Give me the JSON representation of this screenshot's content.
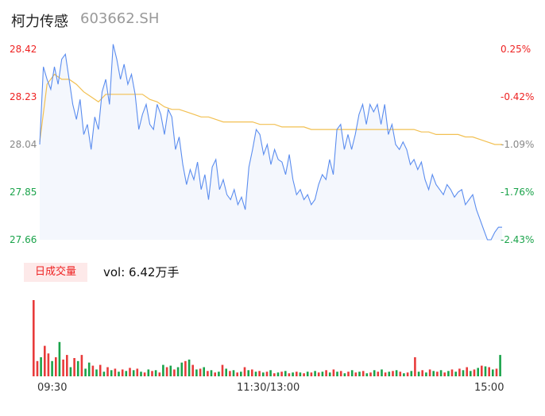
{
  "header": {
    "name": "柯力传感",
    "code": "603662.SH"
  },
  "price_axis": [
    "28.42",
    "28.23",
    "28.04",
    "27.85",
    "27.66"
  ],
  "pct_axis": [
    "0.25%",
    "-0.42%",
    "-1.09%",
    "-1.76%",
    "-2.43%"
  ],
  "volume": {
    "badge": "日成交量",
    "summary": "vol: 6.42万手"
  },
  "time_axis": [
    "09:30",
    "11:30/13:00",
    "15:00"
  ],
  "colors": {
    "up": "#e83b3b",
    "down": "#1aa34a",
    "price": "#5b8def",
    "avg": "#f2c052",
    "neutral": "#888888"
  },
  "chart_data": [
    {
      "type": "line",
      "series": [
        {
          "name": "price",
          "points": [
            [
              0,
              28.04
            ],
            [
              1,
              28.35
            ],
            [
              2,
              28.3
            ],
            [
              3,
              28.26
            ],
            [
              4,
              28.35
            ],
            [
              5,
              28.28
            ],
            [
              6,
              28.38
            ],
            [
              7,
              28.4
            ],
            [
              8,
              28.3
            ],
            [
              9,
              28.2
            ],
            [
              10,
              28.14
            ],
            [
              11,
              28.22
            ],
            [
              12,
              28.08
            ],
            [
              13,
              28.12
            ],
            [
              14,
              28.02
            ],
            [
              15,
              28.15
            ],
            [
              16,
              28.1
            ],
            [
              17,
              28.25
            ],
            [
              18,
              28.3
            ],
            [
              19,
              28.2
            ],
            [
              20,
              28.44
            ],
            [
              21,
              28.38
            ],
            [
              22,
              28.3
            ],
            [
              23,
              28.36
            ],
            [
              24,
              28.28
            ],
            [
              25,
              28.32
            ],
            [
              26,
              28.24
            ],
            [
              27,
              28.1
            ],
            [
              28,
              28.16
            ],
            [
              29,
              28.2
            ],
            [
              30,
              28.12
            ],
            [
              31,
              28.1
            ],
            [
              32,
              28.2
            ],
            [
              33,
              28.16
            ],
            [
              34,
              28.08
            ],
            [
              35,
              28.18
            ],
            [
              36,
              28.15
            ],
            [
              37,
              28.02
            ],
            [
              38,
              28.07
            ],
            [
              39,
              27.96
            ],
            [
              40,
              27.88
            ],
            [
              41,
              27.94
            ],
            [
              42,
              27.9
            ],
            [
              43,
              27.97
            ],
            [
              44,
              27.86
            ],
            [
              45,
              27.92
            ],
            [
              46,
              27.82
            ],
            [
              47,
              27.95
            ],
            [
              48,
              27.98
            ],
            [
              49,
              27.86
            ],
            [
              50,
              27.9
            ],
            [
              51,
              27.84
            ],
            [
              52,
              27.82
            ],
            [
              53,
              27.86
            ],
            [
              54,
              27.8
            ],
            [
              55,
              27.83
            ],
            [
              56,
              27.78
            ],
            [
              57,
              27.95
            ],
            [
              58,
              28.02
            ],
            [
              59,
              28.1
            ],
            [
              60,
              28.08
            ],
            [
              61,
              28.0
            ],
            [
              62,
              28.04
            ],
            [
              63,
              27.96
            ],
            [
              64,
              28.02
            ],
            [
              65,
              27.98
            ],
            [
              66,
              27.97
            ],
            [
              67,
              27.92
            ],
            [
              68,
              28.0
            ],
            [
              69,
              27.9
            ],
            [
              70,
              27.84
            ],
            [
              71,
              27.86
            ],
            [
              72,
              27.82
            ],
            [
              73,
              27.84
            ],
            [
              74,
              27.8
            ],
            [
              75,
              27.82
            ],
            [
              76,
              27.88
            ],
            [
              77,
              27.92
            ],
            [
              78,
              27.9
            ],
            [
              79,
              27.98
            ],
            [
              80,
              27.92
            ],
            [
              81,
              28.1
            ],
            [
              82,
              28.12
            ],
            [
              83,
              28.02
            ],
            [
              84,
              28.08
            ],
            [
              85,
              28.02
            ],
            [
              86,
              28.08
            ],
            [
              87,
              28.16
            ],
            [
              88,
              28.2
            ],
            [
              89,
              28.12
            ],
            [
              90,
              28.2
            ],
            [
              91,
              28.17
            ],
            [
              92,
              28.2
            ],
            [
              93,
              28.12
            ],
            [
              94,
              28.2
            ],
            [
              95,
              28.08
            ],
            [
              96,
              28.12
            ],
            [
              97,
              28.04
            ],
            [
              98,
              28.02
            ],
            [
              99,
              28.05
            ],
            [
              100,
              28.02
            ],
            [
              101,
              27.96
            ],
            [
              102,
              27.98
            ],
            [
              103,
              27.94
            ],
            [
              104,
              27.97
            ],
            [
              105,
              27.9
            ],
            [
              106,
              27.86
            ],
            [
              107,
              27.92
            ],
            [
              108,
              27.88
            ],
            [
              109,
              27.86
            ],
            [
              110,
              27.84
            ],
            [
              111,
              27.88
            ],
            [
              112,
              27.86
            ],
            [
              113,
              27.83
            ],
            [
              114,
              27.85
            ],
            [
              115,
              27.86
            ],
            [
              116,
              27.8
            ],
            [
              117,
              27.82
            ],
            [
              118,
              27.84
            ],
            [
              119,
              27.78
            ],
            [
              120,
              27.74
            ],
            [
              121,
              27.7
            ],
            [
              122,
              27.66
            ],
            [
              123,
              27.66
            ],
            [
              124,
              27.69
            ],
            [
              125,
              27.71
            ],
            [
              126,
              27.71
            ]
          ]
        },
        {
          "name": "avg",
          "points": [
            [
              0,
              28.05
            ],
            [
              2,
              28.28
            ],
            [
              4,
              28.32
            ],
            [
              6,
              28.3
            ],
            [
              8,
              28.3
            ],
            [
              10,
              28.28
            ],
            [
              12,
              28.25
            ],
            [
              14,
              28.23
            ],
            [
              16,
              28.21
            ],
            [
              18,
              28.24
            ],
            [
              20,
              28.24
            ],
            [
              22,
              28.24
            ],
            [
              24,
              28.24
            ],
            [
              26,
              28.24
            ],
            [
              28,
              28.24
            ],
            [
              30,
              28.22
            ],
            [
              32,
              28.21
            ],
            [
              34,
              28.19
            ],
            [
              36,
              28.18
            ],
            [
              38,
              28.18
            ],
            [
              40,
              28.17
            ],
            [
              42,
              28.16
            ],
            [
              44,
              28.15
            ],
            [
              46,
              28.15
            ],
            [
              48,
              28.14
            ],
            [
              50,
              28.13
            ],
            [
              52,
              28.13
            ],
            [
              54,
              28.13
            ],
            [
              56,
              28.13
            ],
            [
              58,
              28.13
            ],
            [
              60,
              28.12
            ],
            [
              62,
              28.12
            ],
            [
              64,
              28.12
            ],
            [
              66,
              28.11
            ],
            [
              68,
              28.11
            ],
            [
              70,
              28.11
            ],
            [
              72,
              28.11
            ],
            [
              74,
              28.1
            ],
            [
              76,
              28.1
            ],
            [
              78,
              28.1
            ],
            [
              80,
              28.1
            ],
            [
              82,
              28.1
            ],
            [
              84,
              28.1
            ],
            [
              86,
              28.1
            ],
            [
              88,
              28.1
            ],
            [
              90,
              28.1
            ],
            [
              92,
              28.1
            ],
            [
              94,
              28.1
            ],
            [
              96,
              28.1
            ],
            [
              98,
              28.1
            ],
            [
              100,
              28.1
            ],
            [
              102,
              28.1
            ],
            [
              104,
              28.09
            ],
            [
              106,
              28.09
            ],
            [
              108,
              28.08
            ],
            [
              110,
              28.08
            ],
            [
              112,
              28.08
            ],
            [
              114,
              28.08
            ],
            [
              116,
              28.07
            ],
            [
              118,
              28.07
            ],
            [
              120,
              28.06
            ],
            [
              122,
              28.05
            ],
            [
              124,
              28.04
            ],
            [
              126,
              28.04
            ]
          ]
        }
      ],
      "ylim": [
        27.66,
        28.42
      ]
    },
    {
      "type": "bar",
      "ylim": [
        0,
        100
      ],
      "values": [
        100,
        20,
        25,
        40,
        30,
        20,
        25,
        45,
        22,
        28,
        12,
        24,
        20,
        28,
        10,
        18,
        14,
        9,
        15,
        6,
        12,
        8,
        10,
        6,
        9,
        7,
        11,
        8,
        10,
        6,
        5,
        9,
        7,
        8,
        5,
        15,
        12,
        14,
        9,
        12,
        18,
        20,
        22,
        15,
        9,
        10,
        12,
        7,
        8,
        5,
        6,
        15,
        10,
        7,
        8,
        5,
        6,
        12,
        8,
        9,
        6,
        7,
        5,
        6,
        8,
        4,
        5,
        6,
        7,
        4,
        5,
        6,
        5,
        4,
        6,
        5,
        7,
        5,
        6,
        8,
        5,
        9,
        6,
        7,
        4,
        6,
        8,
        5,
        6,
        7,
        4,
        5,
        8,
        6,
        9,
        5,
        6,
        7,
        8,
        6,
        4,
        5,
        7,
        25,
        6,
        8,
        5,
        9,
        7,
        6,
        8,
        5,
        7,
        9,
        6,
        10,
        8,
        12,
        7,
        9,
        11,
        14,
        13,
        12,
        9,
        10,
        28
      ],
      "colors": [
        "up",
        "up",
        "down",
        "up",
        "up",
        "down",
        "up",
        "down",
        "up",
        "up",
        "down",
        "up",
        "down",
        "up",
        "down",
        "down",
        "up",
        "down",
        "up",
        "down",
        "up",
        "down",
        "up",
        "down",
        "up",
        "down",
        "up",
        "down",
        "up",
        "down",
        "up",
        "down",
        "up",
        "down",
        "up",
        "down",
        "up",
        "down",
        "up",
        "down",
        "down",
        "up",
        "down",
        "up",
        "down",
        "up",
        "down",
        "up",
        "down",
        "up",
        "down",
        "up",
        "down",
        "up",
        "down",
        "up",
        "down",
        "up",
        "down",
        "up",
        "down",
        "up",
        "down",
        "up",
        "down",
        "up",
        "down",
        "up",
        "down",
        "up",
        "down",
        "up",
        "down",
        "up",
        "down",
        "up",
        "down",
        "up",
        "down",
        "up",
        "down",
        "up",
        "down",
        "up",
        "down",
        "up",
        "down",
        "up",
        "down",
        "up",
        "down",
        "up",
        "down",
        "up",
        "down",
        "up",
        "down",
        "up",
        "down",
        "up",
        "down",
        "up",
        "down",
        "up",
        "down",
        "up",
        "down",
        "up",
        "down",
        "up",
        "down",
        "up",
        "down",
        "up",
        "down",
        "up",
        "down",
        "up",
        "down",
        "up",
        "down",
        "up",
        "down",
        "up",
        "down",
        "up",
        "down"
      ]
    }
  ]
}
